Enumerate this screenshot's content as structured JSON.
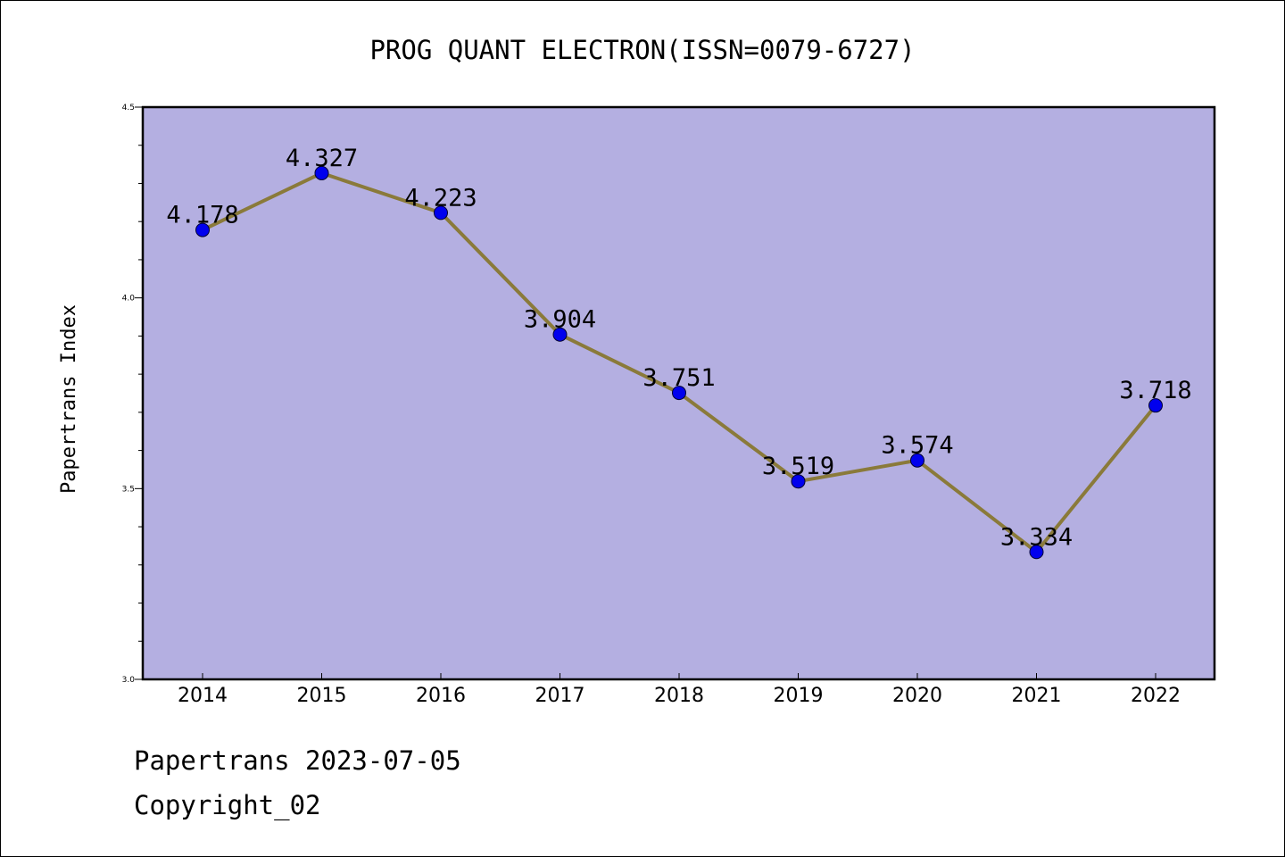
{
  "chart_data": {
    "type": "line",
    "title": "PROG QUANT ELECTRON(ISSN=0079-6727)",
    "xlabel": "",
    "ylabel": "Papertrans Index",
    "categories": [
      "2014",
      "2015",
      "2016",
      "2017",
      "2018",
      "2019",
      "2020",
      "2021",
      "2022"
    ],
    "series": [
      {
        "values": [
          4.178,
          4.327,
          4.223,
          3.904,
          3.751,
          3.519,
          3.574,
          3.334,
          3.718
        ],
        "labels": [
          "4.178",
          "4.327",
          "4.223",
          "3.904",
          "3.751",
          "3.519",
          "3.574",
          "3.334",
          "3.718"
        ]
      }
    ],
    "ylim": [
      3.0,
      4.5
    ],
    "yticks": [
      "3.0",
      "3.5",
      "4.0",
      "4.5"
    ],
    "grid": false,
    "colors": {
      "plot_background": "#b4afe1",
      "line": "#8a7a3a",
      "marker": "#0000ee"
    }
  },
  "footer": {
    "date_line": "Papertrans 2023-07-05",
    "copyright": "Copyright_02"
  }
}
